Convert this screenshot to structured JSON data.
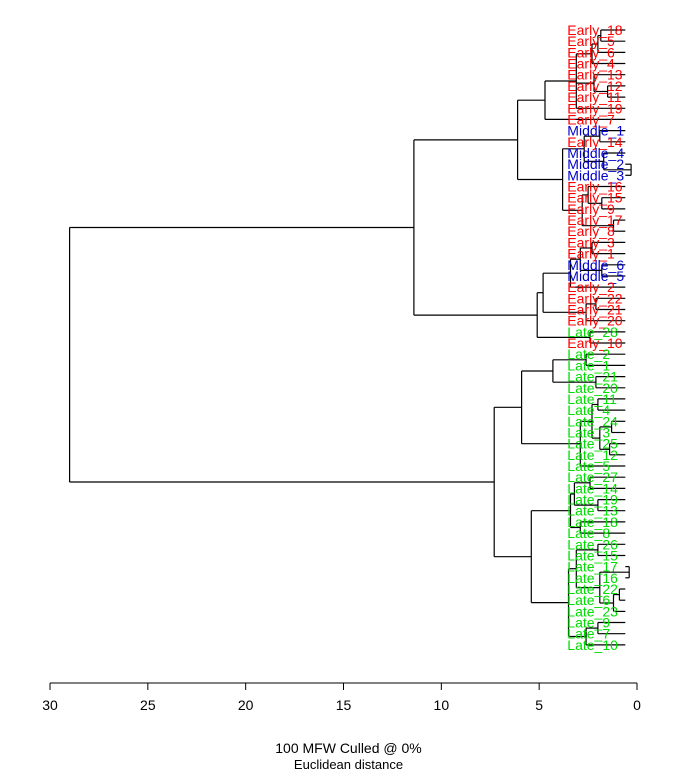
{
  "chart_data": {
    "type": "dendrogram",
    "xlabel_line1": "100 MFW  Culled @ 0%",
    "xlabel_line2": "Euclidean distance",
    "xlim": [
      30,
      0
    ],
    "x_ticks": [
      30,
      25,
      20,
      15,
      10,
      5,
      0
    ],
    "tick_labels": [
      "30",
      "25",
      "20",
      "15",
      "10",
      "5",
      "0"
    ],
    "colors": {
      "Early": "#ff0000",
      "Middle": "#0000cc",
      "Late": "#00dd00"
    },
    "leaves": [
      {
        "name": "Early_18",
        "group": "Early"
      },
      {
        "name": "Early_5",
        "group": "Early"
      },
      {
        "name": "Early_6",
        "group": "Early"
      },
      {
        "name": "Early_4",
        "group": "Early"
      },
      {
        "name": "Early_13",
        "group": "Early"
      },
      {
        "name": "Early_12",
        "group": "Early"
      },
      {
        "name": "Early_11",
        "group": "Early"
      },
      {
        "name": "Early_19",
        "group": "Early"
      },
      {
        "name": "Early_7",
        "group": "Early"
      },
      {
        "name": "Middle_1",
        "group": "Middle"
      },
      {
        "name": "Early_14",
        "group": "Early"
      },
      {
        "name": "Middle_4",
        "group": "Middle"
      },
      {
        "name": "Middle_2",
        "group": "Middle"
      },
      {
        "name": "Middle_3",
        "group": "Middle"
      },
      {
        "name": "Early_16",
        "group": "Early"
      },
      {
        "name": "Early_15",
        "group": "Early"
      },
      {
        "name": "Early_9",
        "group": "Early"
      },
      {
        "name": "Early_17",
        "group": "Early"
      },
      {
        "name": "Early_8",
        "group": "Early"
      },
      {
        "name": "Early_3",
        "group": "Early"
      },
      {
        "name": "Early_1",
        "group": "Early"
      },
      {
        "name": "Middle_6",
        "group": "Middle"
      },
      {
        "name": "Middle_5",
        "group": "Middle"
      },
      {
        "name": "Early_2",
        "group": "Early"
      },
      {
        "name": "Early_22",
        "group": "Early"
      },
      {
        "name": "Early_21",
        "group": "Early"
      },
      {
        "name": "Early_20",
        "group": "Early"
      },
      {
        "name": "Late_28",
        "group": "Late"
      },
      {
        "name": "Early_10",
        "group": "Early"
      },
      {
        "name": "Late_2",
        "group": "Late"
      },
      {
        "name": "Late_1",
        "group": "Late"
      },
      {
        "name": "Late_21",
        "group": "Late"
      },
      {
        "name": "Late_20",
        "group": "Late"
      },
      {
        "name": "Late_11",
        "group": "Late"
      },
      {
        "name": "Late_4",
        "group": "Late"
      },
      {
        "name": "Late_24",
        "group": "Late"
      },
      {
        "name": "Late_3",
        "group": "Late"
      },
      {
        "name": "Late_25",
        "group": "Late"
      },
      {
        "name": "Late_12",
        "group": "Late"
      },
      {
        "name": "Late_5",
        "group": "Late"
      },
      {
        "name": "Late_27",
        "group": "Late"
      },
      {
        "name": "Late_14",
        "group": "Late"
      },
      {
        "name": "Late_19",
        "group": "Late"
      },
      {
        "name": "Late_13",
        "group": "Late"
      },
      {
        "name": "Late_18",
        "group": "Late"
      },
      {
        "name": "Late_8",
        "group": "Late"
      },
      {
        "name": "Late_26",
        "group": "Late"
      },
      {
        "name": "Late_15",
        "group": "Late"
      },
      {
        "name": "Late_17",
        "group": "Late"
      },
      {
        "name": "Late_16",
        "group": "Late"
      },
      {
        "name": "Late_22",
        "group": "Late"
      },
      {
        "name": "Late_6",
        "group": "Late"
      },
      {
        "name": "Late_23",
        "group": "Late"
      },
      {
        "name": "Late_9",
        "group": "Late"
      },
      {
        "name": "Late_7",
        "group": "Late"
      },
      {
        "name": "Late_10",
        "group": "Late"
      }
    ],
    "tree": {
      "h": 29.0,
      "c": [
        {
          "h": 11.4,
          "c": [
            {
              "h": 6.1,
              "c": [
                {
                  "h": 4.7,
                  "c": [
                    {
                      "h": 3.1,
                      "c": [
                        {
                          "h": 2.3,
                          "c": [
                            {
                              "h": 2.0,
                              "c": [
                                {
                                  "h": 1.85,
                                  "c": [
                                    "Early_18",
                                    "Early_5"
                                  ]
                                },
                                "Early_6"
                              ]
                            },
                            "Early_4"
                          ]
                        },
                        {
                          "h": 2.2,
                          "c": [
                            "Early_13",
                            {
                              "h": 1.5,
                              "c": [
                                "Early_12",
                                "Early_11"
                              ]
                            }
                          ]
                        },
                        "Early_19"
                      ]
                    },
                    "Early_7"
                  ]
                },
                {
                  "h": 3.8,
                  "c": [
                    {
                      "h": 2.7,
                      "c": [
                        {
                          "h": 1.9,
                          "c": [
                            "Middle_1",
                            "Early_14"
                          ]
                        },
                        {
                          "h": 1.7,
                          "c": [
                            "Middle_4",
                            {
                              "h": 0.3,
                              "c": [
                                "Middle_2",
                                "Middle_3"
                              ]
                            }
                          ]
                        }
                      ]
                    },
                    {
                      "h": 2.8,
                      "c": [
                        {
                          "h": 2.5,
                          "c": [
                            "Early_16",
                            {
                              "h": 1.8,
                              "c": [
                                "Early_15",
                                "Early_9"
                              ]
                            }
                          ]
                        },
                        {
                          "h": 1.2,
                          "c": [
                            "Early_17",
                            "Early_8"
                          ]
                        }
                      ]
                    }
                  ]
                }
              ]
            },
            {
              "h": 5.1,
              "c": [
                {
                  "h": 4.8,
                  "c": [
                    {
                      "h": 3.4,
                      "c": [
                        {
                          "h": 2.9,
                          "c": [
                            {
                              "h": 2.3,
                              "c": [
                                "Early_3",
                                "Early_1"
                              ]
                            },
                            {
                              "h": 1.8,
                              "c": [
                                "Middle_6",
                                "Middle_5"
                              ]
                            }
                          ]
                        },
                        "Early_2"
                      ]
                    },
                    {
                      "h": 2.6,
                      "c": [
                        {
                          "h": 2.1,
                          "c": [
                            "Early_22",
                            "Early_21"
                          ]
                        },
                        "Early_20"
                      ]
                    }
                  ]
                },
                {
                  "h": 2.4,
                  "c": [
                    "Late_28",
                    "Early_10"
                  ]
                }
              ]
            }
          ]
        },
        {
          "h": 7.3,
          "c": [
            {
              "h": 5.9,
              "c": [
                {
                  "h": 4.3,
                  "c": [
                    {
                      "h": 2.6,
                      "c": [
                        "Late_2",
                        "Late_1"
                      ]
                    },
                    {
                      "h": 2.1,
                      "c": [
                        "Late_21",
                        "Late_20"
                      ]
                    }
                  ]
                },
                {
                  "h": 2.9,
                  "c": [
                    {
                      "h": 2.3,
                      "c": [
                        {
                          "h": 2.0,
                          "c": [
                            "Late_11",
                            "Late_4"
                          ]
                        },
                        {
                          "h": 1.9,
                          "c": [
                            {
                              "h": 1.3,
                              "c": [
                                "Late_24",
                                "Late_3"
                              ]
                            },
                            {
                              "h": 1.4,
                              "c": [
                                "Late_25",
                                "Late_12"
                              ]
                            }
                          ]
                        }
                      ]
                    },
                    "Late_5"
                  ]
                }
              ]
            },
            {
              "h": 5.4,
              "c": [
                {
                  "h": 3.4,
                  "c": [
                    {
                      "h": 3.2,
                      "c": [
                        {
                          "h": 2.4,
                          "c": [
                            "Late_27",
                            "Late_14"
                          ]
                        },
                        {
                          "h": 2.0,
                          "c": [
                            "Late_19",
                            "Late_13"
                          ]
                        }
                      ]
                    },
                    {
                      "h": 2.9,
                      "c": [
                        "Late_18",
                        "Late_8"
                      ]
                    }
                  ]
                },
                {
                  "h": 3.5,
                  "c": [
                    {
                      "h": 3.1,
                      "c": [
                        {
                          "h": 2.0,
                          "c": [
                            "Late_26",
                            "Late_15"
                          ]
                        },
                        {
                          "h": 1.9,
                          "c": [
                            {
                              "h": 0.4,
                              "c": [
                                "Late_17",
                                "Late_16"
                              ]
                            },
                            {
                              "h": 1.2,
                              "c": [
                                {
                                  "h": 0.9,
                                  "c": [
                                    "Late_22",
                                    "Late_6"
                                  ]
                                },
                                "Late_23"
                              ]
                            }
                          ]
                        }
                      ]
                    },
                    {
                      "h": 2.6,
                      "c": [
                        {
                          "h": 2.0,
                          "c": [
                            "Late_9",
                            "Late_7"
                          ]
                        },
                        "Late_10"
                      ]
                    }
                  ]
                }
              ]
            }
          ]
        }
      ]
    }
  }
}
